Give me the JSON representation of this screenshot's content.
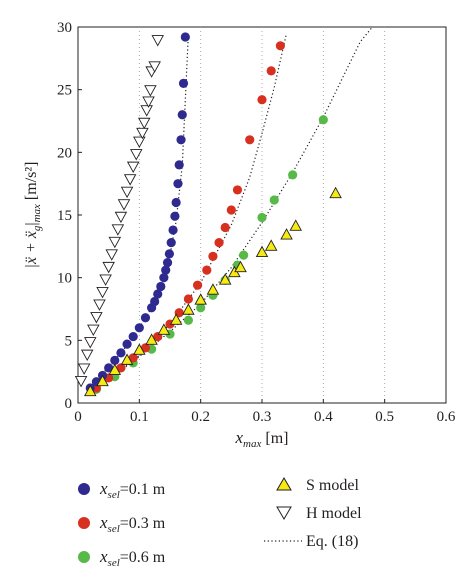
{
  "chart_data": {
    "type": "scatter",
    "xlabel": {
      "main": "x",
      "sub": "max",
      "unit": "[m]"
    },
    "ylabel": {
      "main": "|ẍ + ẍ",
      "sub": "g",
      "tail": "|",
      "subtail": "max",
      "unit": "[m/s²]"
    },
    "xlim": [
      0,
      0.6
    ],
    "ylim": [
      0,
      30
    ],
    "xticks": [
      0,
      0.1,
      0.2,
      0.3,
      0.4,
      0.5,
      0.6
    ],
    "xtick_labels": [
      "0",
      "0.1",
      "0.2",
      "0.3",
      "0.4",
      "0.5",
      "0.6"
    ],
    "yticks": [
      0,
      5,
      10,
      15,
      20,
      25,
      30
    ],
    "ytick_labels": [
      "0",
      "5",
      "10",
      "15",
      "20",
      "25",
      "30"
    ],
    "grid": "dotted vertical gridlines at x ticks",
    "legend_placement": "below plot",
    "series": [
      {
        "name": "x_sel=0.1 m",
        "legend": {
          "main": "x",
          "sub": "sel",
          "value": "=0.1 m"
        },
        "marker": "circle",
        "color": "#2e2a8f",
        "x": [
          0.02,
          0.03,
          0.04,
          0.05,
          0.06,
          0.07,
          0.08,
          0.09,
          0.1,
          0.11,
          0.12,
          0.125,
          0.13,
          0.135,
          0.14,
          0.143,
          0.146,
          0.149,
          0.152,
          0.155,
          0.158,
          0.16,
          0.163,
          0.165,
          0.168,
          0.17,
          0.172,
          0.175
        ],
        "y": [
          1.2,
          1.7,
          2.2,
          2.8,
          3.4,
          4.0,
          4.7,
          5.3,
          6.0,
          6.8,
          7.6,
          8.1,
          8.7,
          9.3,
          10.0,
          10.6,
          11.2,
          11.9,
          12.8,
          13.8,
          14.9,
          16.0,
          17.5,
          19.0,
          21.0,
          23.0,
          25.5,
          29.2
        ]
      },
      {
        "name": "x_sel=0.3 m",
        "legend": {
          "main": "x",
          "sub": "sel",
          "value": "=0.3 m"
        },
        "marker": "circle",
        "color": "#d7301f",
        "x": [
          0.03,
          0.05,
          0.07,
          0.09,
          0.11,
          0.13,
          0.15,
          0.165,
          0.18,
          0.195,
          0.21,
          0.22,
          0.23,
          0.24,
          0.25,
          0.26,
          0.28,
          0.3,
          0.315,
          0.33
        ],
        "y": [
          1.2,
          2.0,
          2.8,
          3.6,
          4.4,
          5.3,
          6.3,
          7.2,
          8.3,
          9.4,
          10.6,
          11.7,
          12.8,
          14.0,
          15.4,
          17.0,
          21.0,
          24.2,
          26.5,
          28.5
        ]
      },
      {
        "name": "x_sel=0.6 m",
        "legend": {
          "main": "x",
          "sub": "sel",
          "value": "=0.6 m"
        },
        "marker": "circle",
        "color": "#57b947",
        "x": [
          0.03,
          0.06,
          0.09,
          0.12,
          0.15,
          0.18,
          0.2,
          0.22,
          0.24,
          0.26,
          0.27,
          0.3,
          0.32,
          0.35,
          0.4
        ],
        "y": [
          1.1,
          2.1,
          3.2,
          4.3,
          5.5,
          6.6,
          7.6,
          8.6,
          9.8,
          11.0,
          11.8,
          14.8,
          16.2,
          18.2,
          22.6
        ]
      },
      {
        "name": "S model",
        "legend": {
          "main": "S model"
        },
        "marker": "triangle-up",
        "color": "#f5ea14",
        "x": [
          0.02,
          0.04,
          0.06,
          0.08,
          0.1,
          0.12,
          0.14,
          0.16,
          0.18,
          0.2,
          0.22,
          0.24,
          0.255,
          0.265,
          0.3,
          0.315,
          0.34,
          0.355,
          0.42
        ],
        "y": [
          0.9,
          1.7,
          2.6,
          3.4,
          4.2,
          5.0,
          5.8,
          6.6,
          7.4,
          8.2,
          9.0,
          9.8,
          10.4,
          10.8,
          12.0,
          12.5,
          13.4,
          14.1,
          16.7
        ]
      },
      {
        "name": "H model",
        "legend": {
          "main": "H model"
        },
        "marker": "triangle-down",
        "color": "#231f20",
        "x": [
          0.005,
          0.01,
          0.015,
          0.02,
          0.025,
          0.03,
          0.035,
          0.04,
          0.045,
          0.05,
          0.055,
          0.06,
          0.065,
          0.07,
          0.075,
          0.08,
          0.085,
          0.09,
          0.095,
          0.1,
          0.105,
          0.108,
          0.112,
          0.115,
          0.118,
          0.12,
          0.125,
          0.13
        ],
        "y": [
          1.8,
          2.8,
          3.9,
          4.9,
          5.9,
          6.9,
          7.9,
          8.9,
          9.9,
          10.9,
          11.9,
          12.9,
          13.9,
          14.9,
          15.9,
          16.9,
          17.9,
          18.9,
          19.9,
          20.9,
          21.6,
          22.4,
          23.4,
          24.1,
          25.0,
          26.5,
          26.9,
          29.0
        ]
      },
      {
        "name": "Eq. (18)",
        "legend": {
          "main": "Eq. (18)"
        },
        "marker": "dotted-line",
        "color": "#231f20",
        "curves": [
          {
            "x": [
              0.02,
              0.05,
              0.08,
              0.1,
              0.12,
              0.14,
              0.15,
              0.16,
              0.17,
              0.18
            ],
            "y": [
              1.2,
              2.9,
              4.6,
              6.0,
              7.6,
              10.0,
              11.8,
              14.5,
              19.0,
              29.5
            ]
          },
          {
            "x": [
              0.03,
              0.1,
              0.15,
              0.2,
              0.25,
              0.28,
              0.3,
              0.32,
              0.34
            ],
            "y": [
              1.2,
              3.8,
              6.3,
              9.6,
              14.2,
              18.0,
              21.5,
              25.2,
              29.5
            ]
          },
          {
            "x": [
              0.03,
              0.1,
              0.15,
              0.2,
              0.25,
              0.3,
              0.35,
              0.4,
              0.43,
              0.46,
              0.48
            ],
            "y": [
              1.1,
              3.7,
              5.7,
              7.9,
              10.8,
              14.4,
              18.4,
              22.8,
              25.8,
              28.8,
              30.0
            ]
          }
        ]
      }
    ]
  }
}
